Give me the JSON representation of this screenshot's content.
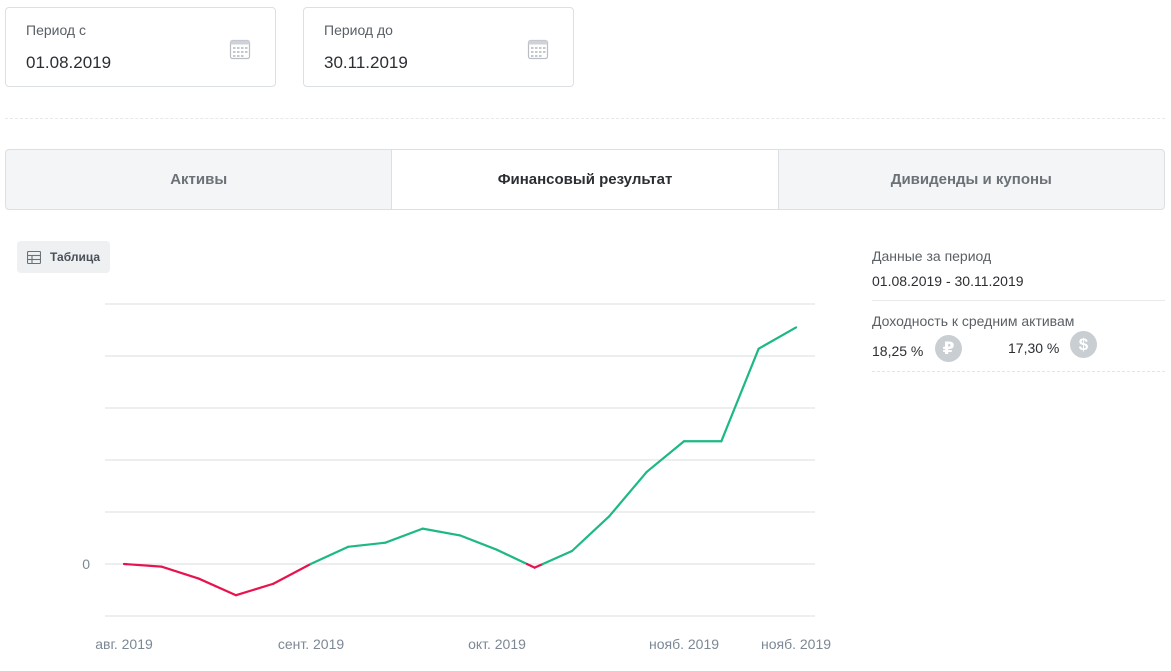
{
  "period_from": {
    "label": "Период с",
    "value": "01.08.2019",
    "icon": "calendar-icon"
  },
  "period_to": {
    "label": "Период до",
    "value": "30.11.2019",
    "icon": "calendar-icon"
  },
  "tabs": [
    {
      "label": "Активы",
      "active": false
    },
    {
      "label": "Финансовый результат",
      "active": true
    },
    {
      "label": "Дивиденды и купоны",
      "active": false
    }
  ],
  "table_button": {
    "label": "Таблица",
    "icon": "table-icon"
  },
  "summary": {
    "period_title": "Данные за период",
    "period_range": "01.08.2019 - 30.11.2019",
    "yield_title": "Доходность к средним активам",
    "yield_rub": "18,25 %",
    "yield_rub_icon": "ruble-icon",
    "yield_usd": "17,30 %",
    "yield_usd_icon": "dollar-icon"
  },
  "colors": {
    "positive": "#1db886",
    "negative": "#e8134d",
    "grid": "#d9dcdf",
    "axis_text": "#7c8894"
  },
  "chart_data": {
    "type": "line",
    "title": "",
    "xlabel": "",
    "ylabel": "",
    "y_tick_labels": [
      "0"
    ],
    "x_tick_labels": [
      "авг. 2019",
      "сент. 2019",
      "окт. 2019",
      "нояб. 2019",
      "нояб. 2019"
    ],
    "ylim": [
      -1,
      5
    ],
    "y_gridlines": [
      -1,
      0,
      1,
      2,
      3,
      4,
      5
    ],
    "grid": true,
    "series": [
      {
        "values": [
          0,
          -0.05,
          -0.28,
          -0.6,
          -0.38,
          0,
          0.33,
          0.41,
          0.68,
          0.55,
          0.27,
          -0.07,
          0.25,
          0.92,
          1.77,
          2.36,
          2.36,
          4.14,
          4.55
        ]
      }
    ]
  }
}
